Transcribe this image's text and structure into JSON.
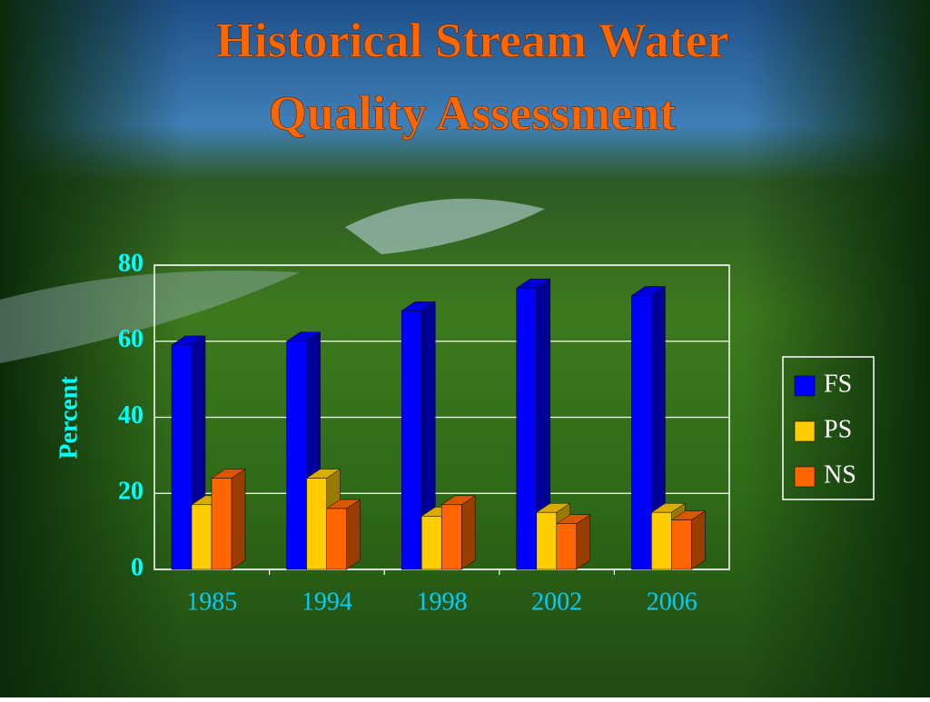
{
  "chart_data": {
    "type": "bar",
    "title": [
      "Historical Stream Water",
      "Quality Assessment"
    ],
    "y_label": "Percent",
    "categories": [
      "1985",
      "1994",
      "1998",
      "2002",
      "2006"
    ],
    "series": [
      {
        "name": "FS",
        "color": "#0000ff",
        "values": [
          59,
          60,
          68,
          74,
          72
        ]
      },
      {
        "name": "PS",
        "color": "#ffcc00",
        "values": [
          17,
          24,
          14,
          15,
          15
        ]
      },
      {
        "name": "NS",
        "color": "#ff6600",
        "values": [
          24,
          16,
          17,
          12,
          13
        ]
      }
    ],
    "ylim": [
      0,
      80
    ],
    "yticks": [
      0,
      20,
      40,
      60,
      80
    ],
    "grid": true,
    "legend": "right"
  }
}
